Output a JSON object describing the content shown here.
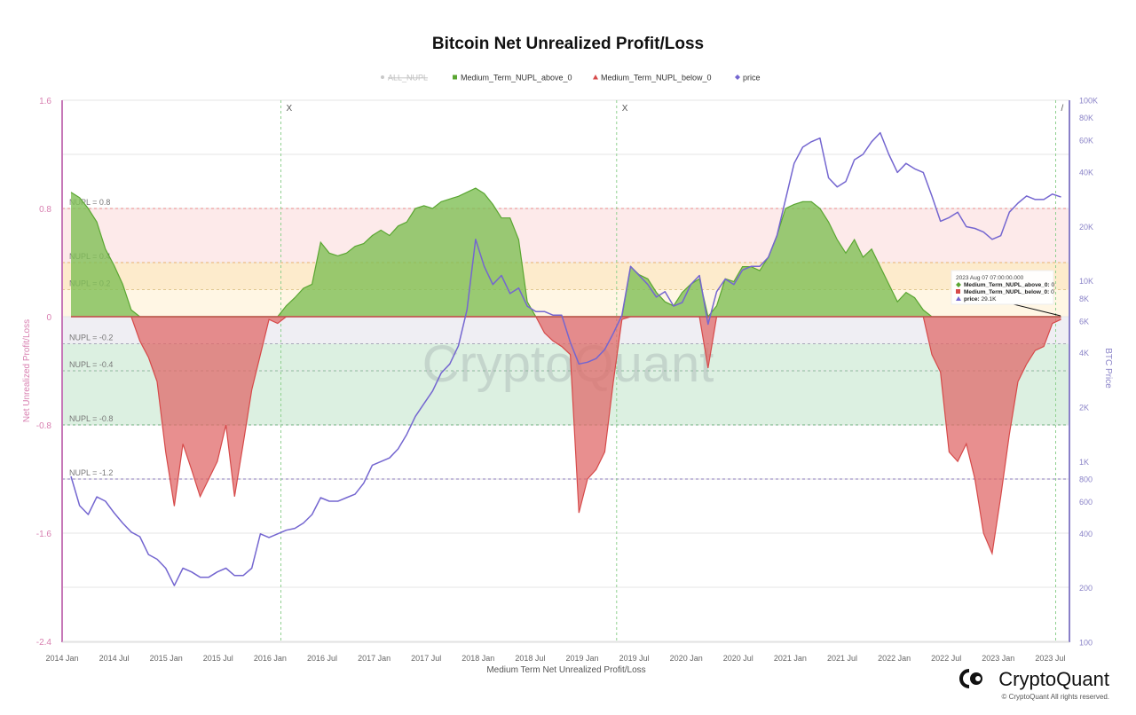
{
  "title": "Bitcoin Net Unrealized Profit/Loss",
  "legend": [
    {
      "label": "ALL_NUPL",
      "color": "#c8c8c8",
      "marker": "circle",
      "disabled": true
    },
    {
      "label": "Medium_Term_NUPL_above_0",
      "color": "#5aa632",
      "marker": "square",
      "disabled": false
    },
    {
      "label": "Medium_Term_NUPL_below_0",
      "color": "#d64a4a",
      "marker": "triangle",
      "disabled": false
    },
    {
      "label": "price",
      "color": "#7466d0",
      "marker": "diamond",
      "disabled": false
    }
  ],
  "tooltip": {
    "date": "2023 Aug 07 07:00:00.000",
    "rows": [
      {
        "label": "Medium_Term_NUPL_above_0",
        "value": "0"
      },
      {
        "label": "Medium_Term_NUPL_below_0",
        "value": "0"
      },
      {
        "label": "price",
        "value": "29.1K"
      }
    ]
  },
  "watermark": "CryptoQuant",
  "brand": {
    "name": "CryptoQuant",
    "copyright": "© CryptoQuant All rights reserved."
  },
  "chart_data": {
    "type": "area",
    "title": "Bitcoin Net Unrealized Profit/Loss",
    "xlabel": "Medium Term Net Unrealized Profit/Loss",
    "ylabel": "Net Unrealized Profit/Loss",
    "y2label": "BTC Price",
    "ylim": [
      -2.4,
      1.6
    ],
    "y2lim": [
      100,
      100000
    ],
    "y2scale": "log",
    "grid": true,
    "legend_position": "top",
    "x_ticks": [
      "2014 Jan",
      "2014 Jul",
      "2015 Jan",
      "2015 Jul",
      "2016 Jan",
      "2016 Jul",
      "2017 Jan",
      "2017 Jul",
      "2018 Jan",
      "2018 Jul",
      "2019 Jan",
      "2019 Jul",
      "2020 Jan",
      "2020 Jul",
      "2021 Jan",
      "2021 Jul",
      "2022 Jan",
      "2022 Jul",
      "2023 Jan",
      "2023 Jul"
    ],
    "y_ticks": [
      "1.6",
      "0.8",
      "0",
      "-0.8",
      "-1.6",
      "-2.4"
    ],
    "y2_ticks": [
      "100K",
      "80K",
      "60K",
      "40K",
      "20K",
      "10K",
      "8K",
      "6K",
      "4K",
      "2K",
      "1K",
      "800",
      "600",
      "400",
      "200",
      "100"
    ],
    "levels": [
      {
        "value": 0.8,
        "label": "NUPL = 0.8",
        "color": "#e88a8a"
      },
      {
        "value": 0.4,
        "label": "NUPL = 0.4",
        "color": "#e8b070"
      },
      {
        "value": 0.2,
        "label": "NUPL = 0.2",
        "color": "#e0c890"
      },
      {
        "value": -0.2,
        "label": "NUPL = -0.2",
        "color": "#a8a8b8"
      },
      {
        "value": -0.4,
        "label": "NUPL = -0.4",
        "color": "#90b8a0"
      },
      {
        "value": -0.8,
        "label": "NUPL = -0.8",
        "color": "#70b080"
      },
      {
        "value": -1.2,
        "label": "NUPL = -1.2",
        "color": "#8a7ab8"
      }
    ],
    "bands": [
      {
        "from": 0.8,
        "to": 0.4,
        "color": "#fdeaea"
      },
      {
        "from": 0.4,
        "to": 0.2,
        "color": "#fdebcc"
      },
      {
        "from": 0.2,
        "to": 0,
        "color": "#fff6e4"
      },
      {
        "from": 0,
        "to": -0.2,
        "color": "#efeef3"
      },
      {
        "from": -0.2,
        "to": -0.8,
        "color": "#dcf0e1"
      }
    ],
    "markers": [
      {
        "date": "2016-02",
        "label": "X"
      },
      {
        "date": "2019-05",
        "label": "X"
      },
      {
        "date": "2023-08",
        "label": "/"
      }
    ],
    "dates": [
      "2014-01",
      "2014-02",
      "2014-03",
      "2014-04",
      "2014-05",
      "2014-06",
      "2014-07",
      "2014-08",
      "2014-09",
      "2014-10",
      "2014-11",
      "2014-12",
      "2015-01",
      "2015-02",
      "2015-03",
      "2015-04",
      "2015-05",
      "2015-06",
      "2015-07",
      "2015-08",
      "2015-09",
      "2015-10",
      "2015-11",
      "2015-12",
      "2016-01",
      "2016-02",
      "2016-03",
      "2016-04",
      "2016-05",
      "2016-06",
      "2016-07",
      "2016-08",
      "2016-09",
      "2016-10",
      "2016-11",
      "2016-12",
      "2017-01",
      "2017-02",
      "2017-03",
      "2017-04",
      "2017-05",
      "2017-06",
      "2017-07",
      "2017-08",
      "2017-09",
      "2017-10",
      "2017-11",
      "2017-12",
      "2018-01",
      "2018-02",
      "2018-03",
      "2018-04",
      "2018-05",
      "2018-06",
      "2018-07",
      "2018-08",
      "2018-09",
      "2018-10",
      "2018-11",
      "2018-12",
      "2019-01",
      "2019-02",
      "2019-03",
      "2019-04",
      "2019-05",
      "2019-06",
      "2019-07",
      "2019-08",
      "2019-09",
      "2019-10",
      "2019-11",
      "2019-12",
      "2020-01",
      "2020-02",
      "2020-03",
      "2020-04",
      "2020-05",
      "2020-06",
      "2020-07",
      "2020-08",
      "2020-09",
      "2020-10",
      "2020-11",
      "2020-12",
      "2021-01",
      "2021-02",
      "2021-03",
      "2021-04",
      "2021-05",
      "2021-06",
      "2021-07",
      "2021-08",
      "2021-09",
      "2021-10",
      "2021-11",
      "2021-12",
      "2022-01",
      "2022-02",
      "2022-03",
      "2022-04",
      "2022-05",
      "2022-06",
      "2022-07",
      "2022-08",
      "2022-09",
      "2022-10",
      "2022-11",
      "2022-12",
      "2023-01",
      "2023-02",
      "2023-03",
      "2023-04",
      "2023-05",
      "2023-06",
      "2023-07",
      "2023-08"
    ],
    "nupl": [
      0.92,
      0.88,
      0.8,
      0.7,
      0.5,
      0.38,
      0.24,
      0.05,
      -0.18,
      -0.3,
      -0.48,
      -1.0,
      -1.4,
      -0.94,
      -1.13,
      -1.33,
      -1.2,
      -1.07,
      -0.8,
      -1.33,
      -0.94,
      -0.54,
      -0.28,
      -0.02,
      -0.05,
      0.08,
      0.14,
      0.21,
      0.24,
      0.55,
      0.47,
      0.45,
      0.47,
      0.52,
      0.54,
      0.6,
      0.64,
      0.6,
      0.67,
      0.7,
      0.8,
      0.82,
      0.8,
      0.85,
      0.87,
      0.89,
      0.92,
      0.95,
      0.91,
      0.83,
      0.73,
      0.73,
      0.57,
      0.11,
      0,
      -0.12,
      -0.18,
      -0.22,
      -0.28,
      -1.45,
      -1.2,
      -1.13,
      -1.0,
      -0.48,
      -0.02,
      0.37,
      0.31,
      0.28,
      0.18,
      0.11,
      0.08,
      0.18,
      0.24,
      0.28,
      -0.38,
      0.08,
      0.28,
      0.26,
      0.37,
      0.37,
      0.34,
      0.44,
      0.6,
      0.8,
      0.83,
      0.85,
      0.85,
      0.8,
      0.7,
      0.57,
      0.47,
      0.57,
      0.44,
      0.5,
      0.37,
      0.24,
      0.11,
      0.18,
      0.14,
      0.05,
      -0.28,
      -0.41,
      -1.0,
      -1.07,
      -0.94,
      -1.2,
      -1.6,
      -1.75,
      -1.33,
      -0.87,
      -0.48,
      -0.35,
      -0.25,
      -0.22,
      -0.05,
      -0.02
    ],
    "series": [
      {
        "name": "Medium_Term_NUPL_above_0",
        "color": "#5aa632",
        "fill": "#7fbf55",
        "axis": "left",
        "rule": "nupl >= 0"
      },
      {
        "name": "Medium_Term_NUPL_below_0",
        "color": "#d64a4a",
        "fill": "#e06a6a",
        "axis": "left",
        "rule": "nupl < 0"
      },
      {
        "name": "price",
        "color": "#7466d0",
        "axis": "right",
        "values": [
          828,
          570,
          509,
          638,
          603,
          521,
          457,
          407,
          384,
          306,
          288,
          257,
          206,
          257,
          245,
          229,
          229,
          245,
          257,
          234,
          234,
          257,
          398,
          380,
          398,
          417,
          427,
          457,
          509,
          631,
          603,
          603,
          631,
          660,
          759,
          955,
          1000,
          1047,
          1175,
          1413,
          1778,
          2089,
          2455,
          3090,
          3467,
          4365,
          6918,
          16982,
          12023,
          9550,
          10715,
          8511,
          9120,
          7244,
          6761,
          6761,
          6457,
          6457,
          4571,
          3467,
          3548,
          3715,
          4169,
          5129,
          6457,
          12023,
          10715,
          9550,
          8128,
          8710,
          7244,
          7586,
          9550,
          10715,
          5754,
          8710,
          10233,
          9550,
          11482,
          12023,
          12023,
          13490,
          17783,
          28184,
          44668,
          54954,
          58884,
          61660,
          37154,
          33113,
          35481,
          46774,
          50119,
          58884,
          66069,
          50119,
          39811,
          44668,
          41687,
          39811,
          29512,
          21380,
          22387,
          23988,
          19953,
          19498,
          18621,
          16982,
          17783,
          23988,
          26915,
          29512,
          28184,
          28184,
          30200,
          29100
        ]
      }
    ]
  }
}
